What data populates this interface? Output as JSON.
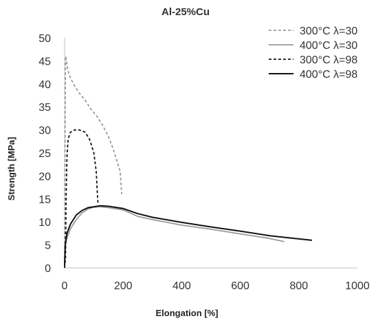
{
  "chart_data": {
    "type": "line",
    "title": "Al-25%Cu",
    "xlabel": "Elongation [%]",
    "ylabel": "Strength [MPa]",
    "xlim": [
      0,
      1000
    ],
    "ylim": [
      0,
      50
    ],
    "xticks": [
      0,
      200,
      400,
      600,
      800,
      1000
    ],
    "yticks": [
      0,
      5,
      10,
      15,
      20,
      25,
      30,
      35,
      40,
      45,
      50
    ],
    "grid": false,
    "legend_position": "top-right",
    "series": [
      {
        "name": "300°C λ=30",
        "color": "#999999",
        "style": "dashed",
        "points": [
          [
            0,
            0
          ],
          [
            1,
            20
          ],
          [
            2,
            35
          ],
          [
            3,
            45
          ],
          [
            4,
            46
          ],
          [
            8,
            44
          ],
          [
            15,
            42
          ],
          [
            30,
            40
          ],
          [
            50,
            38
          ],
          [
            70,
            36.5
          ],
          [
            90,
            34.5
          ],
          [
            110,
            33
          ],
          [
            130,
            31
          ],
          [
            150,
            28.5
          ],
          [
            165,
            26
          ],
          [
            180,
            23
          ],
          [
            190,
            21
          ],
          [
            195,
            16
          ]
        ]
      },
      {
        "name": "400°C λ=30",
        "color": "#999999",
        "style": "solid",
        "points": [
          [
            0,
            1
          ],
          [
            3,
            5
          ],
          [
            8,
            6.5
          ],
          [
            20,
            8.5
          ],
          [
            40,
            10.5
          ],
          [
            60,
            12
          ],
          [
            80,
            12.8
          ],
          [
            100,
            13.2
          ],
          [
            120,
            13.3
          ],
          [
            150,
            13.1
          ],
          [
            200,
            12.6
          ],
          [
            250,
            11.2
          ],
          [
            300,
            10.5
          ],
          [
            400,
            9.3
          ],
          [
            500,
            8.4
          ],
          [
            600,
            7.4
          ],
          [
            700,
            6.4
          ],
          [
            750,
            5.7
          ]
        ]
      },
      {
        "name": "300°C λ=98",
        "color": "#111111",
        "style": "dashed",
        "points": [
          [
            0,
            0
          ],
          [
            3,
            2
          ],
          [
            5,
            15
          ],
          [
            8,
            24
          ],
          [
            12,
            28
          ],
          [
            20,
            29.5
          ],
          [
            35,
            30
          ],
          [
            50,
            30
          ],
          [
            70,
            29.5
          ],
          [
            85,
            28
          ],
          [
            100,
            25
          ],
          [
            108,
            21
          ],
          [
            112,
            16
          ],
          [
            114,
            14
          ]
        ]
      },
      {
        "name": "400°C λ=98",
        "color": "#111111",
        "style": "solid",
        "points": [
          [
            0,
            0.5
          ],
          [
            2,
            5
          ],
          [
            8,
            7.5
          ],
          [
            20,
            9.5
          ],
          [
            40,
            11.5
          ],
          [
            60,
            12.5
          ],
          [
            80,
            13.1
          ],
          [
            100,
            13.3
          ],
          [
            120,
            13.5
          ],
          [
            150,
            13.4
          ],
          [
            200,
            12.9
          ],
          [
            250,
            11.8
          ],
          [
            300,
            11
          ],
          [
            400,
            9.9
          ],
          [
            500,
            8.9
          ],
          [
            600,
            8
          ],
          [
            700,
            7
          ],
          [
            800,
            6.3
          ],
          [
            845,
            6
          ]
        ]
      }
    ]
  }
}
